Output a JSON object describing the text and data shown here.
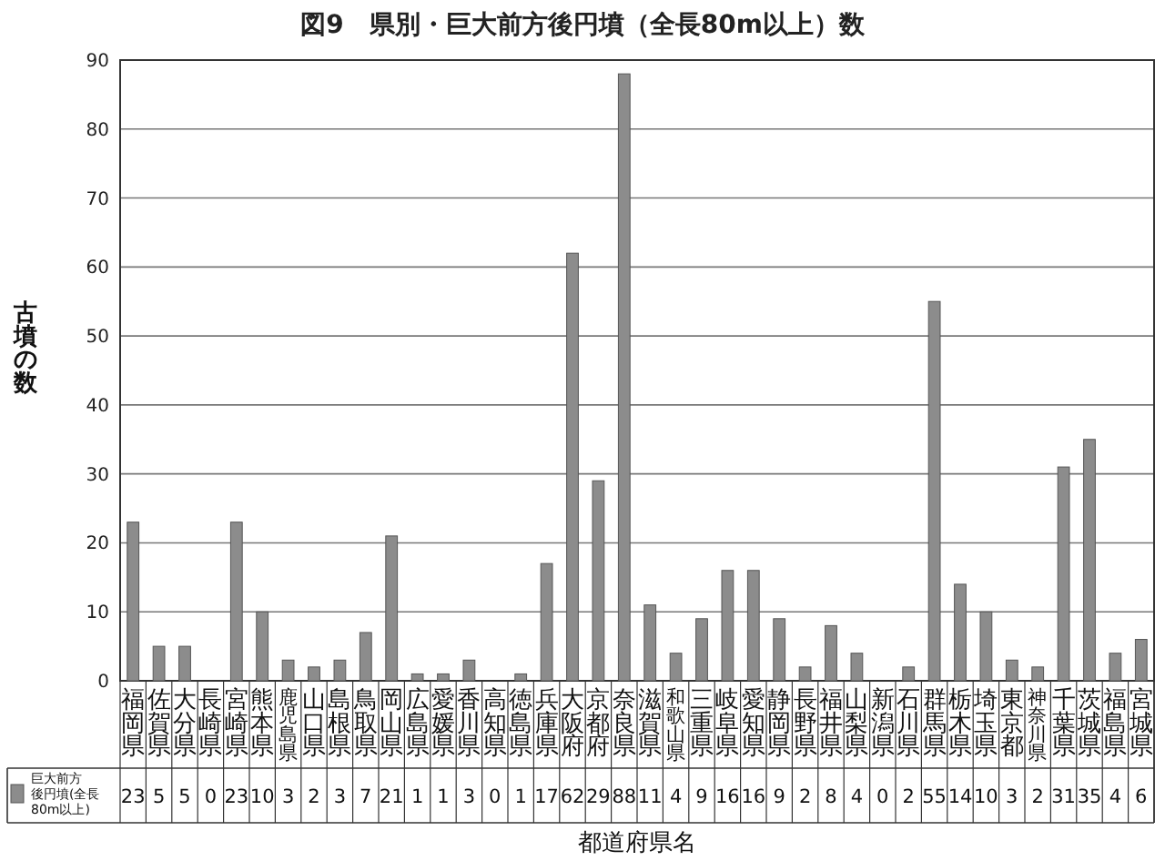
{
  "chart_data": {
    "type": "bar",
    "title": "図9　県別・巨大前方後円墳（全長80m以上）数",
    "xlabel": "都道府県名",
    "ylabel": "古墳の数",
    "categories": [
      "福岡県",
      "佐賀県",
      "大分県",
      "長崎県",
      "宮崎県",
      "熊本県",
      "鹿児島県",
      "山口県",
      "島根県",
      "鳥取県",
      "岡山県",
      "広島県",
      "愛媛県",
      "香川県",
      "高知県",
      "徳島県",
      "兵庫県",
      "大阪府",
      "京都府",
      "奈良県",
      "滋賀県",
      "和歌山県",
      "三重県",
      "岐阜県",
      "愛知県",
      "静岡県",
      "長野県",
      "福井県",
      "山梨県",
      "新潟県",
      "石川県",
      "群馬県",
      "栃木県",
      "埼玉県",
      "東京都",
      "神奈川県",
      "千葉県",
      "茨城県",
      "福島県",
      "宮城県"
    ],
    "series": [
      {
        "name": "巨大前方後円墳(全長80m以上)",
        "color": "#8c8c8c",
        "values": [
          23,
          5,
          5,
          0,
          23,
          10,
          3,
          2,
          3,
          7,
          21,
          1,
          1,
          3,
          0,
          1,
          17,
          62,
          29,
          88,
          11,
          4,
          9,
          16,
          16,
          9,
          2,
          8,
          4,
          0,
          2,
          55,
          14,
          10,
          3,
          2,
          31,
          35,
          4,
          6
        ]
      }
    ],
    "ylim": [
      0,
      90
    ],
    "yticks": [
      0,
      10,
      20,
      30,
      40,
      50,
      60,
      70,
      80,
      90
    ],
    "grid": "y",
    "legend": "bottom left",
    "data_labels": true
  }
}
